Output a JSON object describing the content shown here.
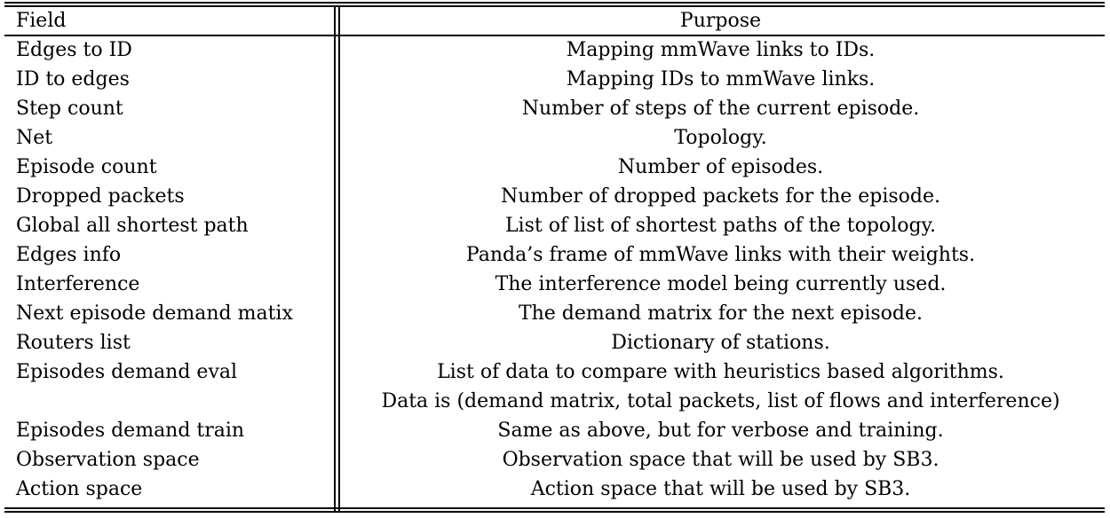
{
  "table": {
    "headers": {
      "field": "Field",
      "purpose": "Purpose"
    },
    "rows": [
      {
        "field": "Edges to ID",
        "purpose": "Mapping mmWave links to IDs."
      },
      {
        "field": "ID to edges",
        "purpose": "Mapping IDs to mmWave links."
      },
      {
        "field": "Step count",
        "purpose": "Number of steps of the current episode."
      },
      {
        "field": "Net",
        "purpose": "Topology."
      },
      {
        "field": "Episode count",
        "purpose": "Number of episodes."
      },
      {
        "field": "Dropped packets",
        "purpose": "Number of dropped packets for the episode."
      },
      {
        "field": "Global all shortest path",
        "purpose": "List of list of shortest paths of the topology."
      },
      {
        "field": "Edges info",
        "purpose": "Panda’s frame of mmWave links with their weights."
      },
      {
        "field": "Interference",
        "purpose": "The interference model being currently used."
      },
      {
        "field": "Next episode demand matix",
        "purpose": "The demand matrix for the next episode."
      },
      {
        "field": "Routers list",
        "purpose": "Dictionary of stations."
      },
      {
        "field": "Episodes demand eval",
        "purpose": "List of data to compare with heuristics based algorithms."
      },
      {
        "field": "",
        "purpose": "Data is (demand matrix, total packets, list of flows and interference)"
      },
      {
        "field": "Episodes demand train",
        "purpose": "Same as above, but for verbose and training."
      },
      {
        "field": "Observation space",
        "purpose": "Observation space that will be used by SB3."
      },
      {
        "field": "Action space",
        "purpose": "Action space that will be used by SB3."
      }
    ]
  }
}
